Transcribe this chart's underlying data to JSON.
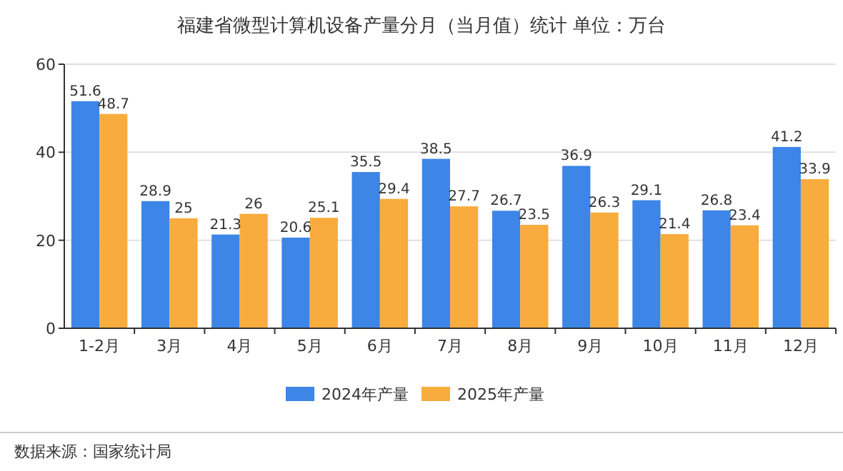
{
  "chart_data": {
    "type": "bar",
    "title": "福建省微型计算机设备产量分月（当月值）统计  单位：万台",
    "categories": [
      "1-2月",
      "3月",
      "4月",
      "5月",
      "6月",
      "7月",
      "8月",
      "9月",
      "10月",
      "11月",
      "12月"
    ],
    "series": [
      {
        "name": "2024年产量",
        "color": "#3d85e6",
        "values": [
          51.6,
          28.9,
          21.3,
          20.6,
          35.5,
          38.5,
          26.7,
          36.9,
          29.1,
          26.8,
          41.2
        ]
      },
      {
        "name": "2025年产量",
        "color": "#f7ac3d",
        "values": [
          48.7,
          25,
          26,
          25.1,
          29.4,
          27.7,
          23.5,
          26.3,
          21.4,
          23.4,
          33.9
        ]
      }
    ],
    "ylim": [
      0,
      60
    ],
    "yticks": [
      0,
      20,
      40,
      60
    ],
    "grid": "y",
    "legend": "bottom",
    "data_labels": true,
    "annotations": [
      "数据来源：国家统计局"
    ]
  }
}
